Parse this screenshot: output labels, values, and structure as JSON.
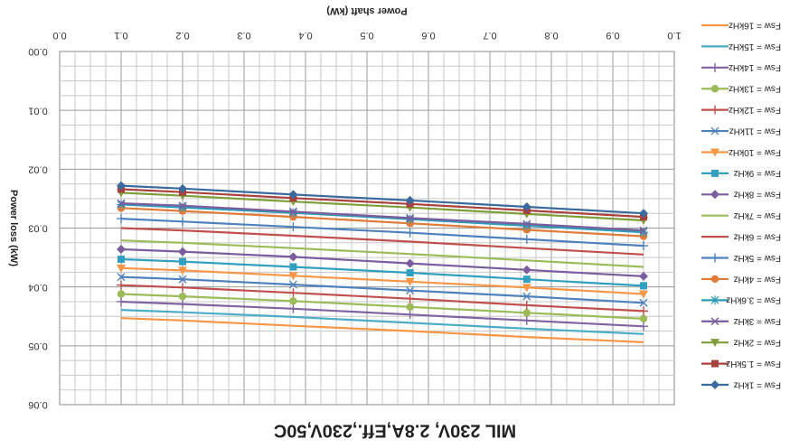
{
  "chart_data": {
    "type": "line",
    "orientation": "rotated-180",
    "title": "MIL 230V, 2.8A,Eff.,230V,50C",
    "xlabel": "Power shaft (kW)",
    "ylabel": "Power loss (kW)",
    "xlim": [
      0.0,
      1.0
    ],
    "ylim": [
      0.0,
      0.06
    ],
    "x_ticks": [
      "0.0",
      "0.1",
      "0.2",
      "0.3",
      "0.4",
      "0.5",
      "0.6",
      "0.7",
      "0.8",
      "0.9",
      "1.0"
    ],
    "y_ticks": [
      "0.00",
      "0.01",
      "0.02",
      "0.03",
      "0.04",
      "0.05",
      "0.06"
    ],
    "grid": true,
    "legend_position": "right",
    "x": [
      0.1,
      0.2,
      0.38,
      0.57,
      0.76,
      0.95
    ],
    "series": [
      {
        "name": "Fsw = 16kHz",
        "color": "#F79646",
        "marker": "none",
        "values": [
          0.0453,
          0.0457,
          0.0466,
          0.0475,
          0.0485,
          0.0494
        ]
      },
      {
        "name": "Fsw = 15kHz",
        "color": "#4BACC6",
        "marker": "none",
        "values": [
          0.0439,
          0.0443,
          0.0451,
          0.0461,
          0.0471,
          0.048
        ]
      },
      {
        "name": "Fsw = 14kHz",
        "color": "#8064A2",
        "marker": "plus",
        "values": [
          0.0425,
          0.0429,
          0.0437,
          0.0447,
          0.0457,
          0.0467
        ]
      },
      {
        "name": "Fsw = 13kHz",
        "color": "#9BBB59",
        "marker": "circle",
        "values": [
          0.0412,
          0.0416,
          0.0424,
          0.0434,
          0.0444,
          0.0454
        ]
      },
      {
        "name": "Fsw = 12kHz",
        "color": "#C0504D",
        "marker": "plus",
        "values": [
          0.0397,
          0.0401,
          0.041,
          0.042,
          0.0431,
          0.0441
        ]
      },
      {
        "name": "Fsw = 11kHz",
        "color": "#4F81BD",
        "marker": "x",
        "values": [
          0.0383,
          0.0387,
          0.0396,
          0.0406,
          0.0416,
          0.0427
        ]
      },
      {
        "name": "Fsw = 10kHz",
        "color": "#F79646",
        "marker": "triangle",
        "values": [
          0.0368,
          0.0372,
          0.0381,
          0.0391,
          0.0401,
          0.0412
        ]
      },
      {
        "name": "Fsw = 9kHz",
        "color": "#31A0C0",
        "marker": "square",
        "values": [
          0.0353,
          0.0357,
          0.0366,
          0.0376,
          0.0387,
          0.0398
        ]
      },
      {
        "name": "Fsw = 8kHz",
        "color": "#7B5C9E",
        "marker": "diamond",
        "values": [
          0.0336,
          0.034,
          0.0349,
          0.036,
          0.0371,
          0.0382
        ]
      },
      {
        "name": "Fsw = 7kHz",
        "color": "#9BBB59",
        "marker": "none",
        "values": [
          0.0321,
          0.0325,
          0.0334,
          0.0344,
          0.0355,
          0.0366
        ]
      },
      {
        "name": "Fsw = 6kHz",
        "color": "#C0504D",
        "marker": "none",
        "values": [
          0.03,
          0.0304,
          0.0313,
          0.0323,
          0.0334,
          0.0345
        ]
      },
      {
        "name": "Fsw = 5kHz",
        "color": "#4F81BD",
        "marker": "plus",
        "values": [
          0.0284,
          0.0289,
          0.0298,
          0.0308,
          0.0319,
          0.033
        ]
      },
      {
        "name": "Fsw = 4kHz",
        "color": "#E07B39",
        "marker": "circle",
        "values": [
          0.0266,
          0.0271,
          0.0281,
          0.0292,
          0.0303,
          0.0314
        ]
      },
      {
        "name": "Fsw = 3.6kHz",
        "color": "#2E9BB5",
        "marker": "star",
        "values": [
          0.026,
          0.0265,
          0.0274,
          0.0285,
          0.0296,
          0.0307
        ]
      },
      {
        "name": "Fsw = 3kHz",
        "color": "#7B5C9E",
        "marker": "x",
        "values": [
          0.0258,
          0.0262,
          0.0272,
          0.0283,
          0.0293,
          0.0304
        ]
      },
      {
        "name": "Fsw = 2kHz",
        "color": "#7E9E3A",
        "marker": "triangle",
        "values": [
          0.024,
          0.0245,
          0.0255,
          0.0265,
          0.0276,
          0.0287
        ]
      },
      {
        "name": "Fsw = 1.5kHz",
        "color": "#A8403D",
        "marker": "square",
        "values": [
          0.0234,
          0.0239,
          0.0249,
          0.0259,
          0.027,
          0.0281
        ]
      },
      {
        "name": "Fsw = 1kHz",
        "color": "#3A6A9E",
        "marker": "diamond",
        "values": [
          0.0228,
          0.0233,
          0.0243,
          0.0253,
          0.0264,
          0.0275
        ]
      }
    ]
  }
}
